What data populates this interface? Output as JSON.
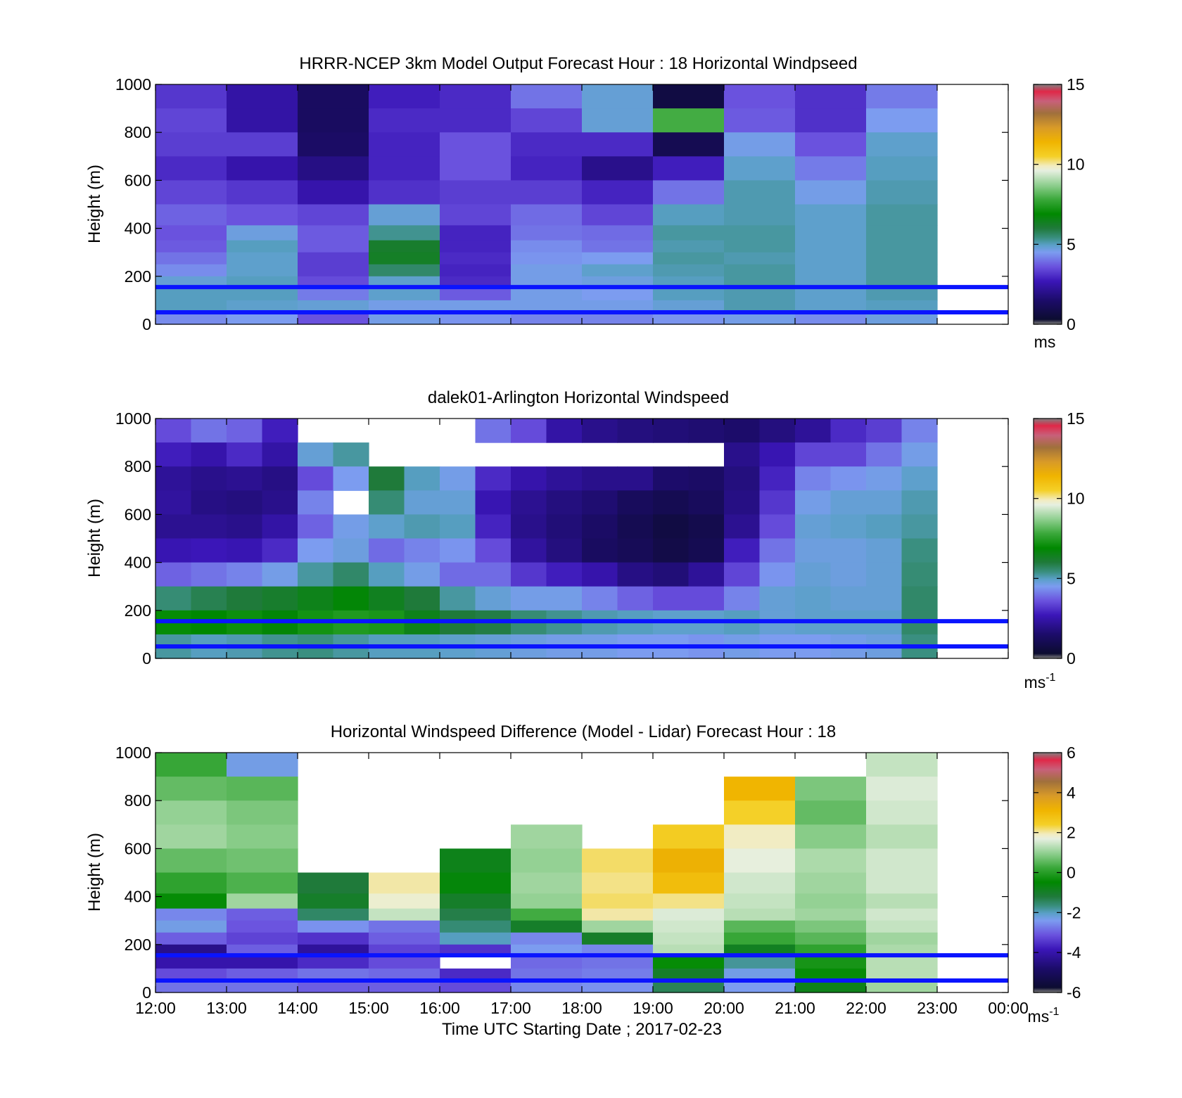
{
  "figure": {
    "xlabel": "Time UTC  Starting Date ; 2017-02-23",
    "time_ticks": [
      "12:00",
      "13:00",
      "14:00",
      "15:00",
      "16:00",
      "17:00",
      "18:00",
      "19:00",
      "20:00",
      "21:00",
      "22:00",
      "23:00",
      "00:00"
    ],
    "reference_lines_m": [
      155,
      50
    ],
    "reference_line_color": "#0a14ff"
  },
  "chart_data": [
    {
      "type": "heatmap",
      "title": "HRRR-NCEP 3km Model Output   Forecast Hour : 18 Horizontal Windpseed",
      "ylabel": "Height (m)",
      "ylim": [
        0,
        1000
      ],
      "yticks": [
        "1000",
        "800",
        "600",
        "400",
        "200",
        "0"
      ],
      "colorbar": {
        "range": [
          0,
          15
        ],
        "ticks": [
          "15",
          "10",
          "5",
          "0"
        ],
        "unit": "ms"
      },
      "x_hours": [
        12,
        13,
        14,
        15,
        16,
        17,
        18,
        19,
        20,
        21,
        22
      ],
      "levels_m": [
        950,
        850,
        750,
        650,
        550,
        450,
        375,
        325,
        275,
        225,
        175,
        125,
        75,
        25
      ],
      "values_ms": [
        [
          3.2,
          3.4,
          3.3,
          3.0,
          3.4,
          3.8,
          3.6,
          3.7,
          4.0,
          4.3,
          4.8,
          5.0,
          5.0,
          4.3
        ],
        [
          2.4,
          2.4,
          3.3,
          2.5,
          3.2,
          3.6,
          4.7,
          5.0,
          4.9,
          4.9,
          5.0,
          5.0,
          4.9,
          4.5
        ],
        [
          1.3,
          1.3,
          1.4,
          1.9,
          2.5,
          3.4,
          3.7,
          3.7,
          3.3,
          3.3,
          3.5,
          4.1,
          4.8,
          3.6
        ],
        [
          2.8,
          3.0,
          2.9,
          2.9,
          3.1,
          4.8,
          5.3,
          6.2,
          6.3,
          5.6,
          4.9,
          4.9,
          4.6,
          4.6
        ],
        [
          3.0,
          3.0,
          3.6,
          3.6,
          3.3,
          3.4,
          2.9,
          2.9,
          3.0,
          2.9,
          3.0,
          3.7,
          4.6,
          4.4
        ],
        [
          4.0,
          3.4,
          3.0,
          2.9,
          3.3,
          3.9,
          4.0,
          4.3,
          4.4,
          4.6,
          4.6,
          4.6,
          4.6,
          4.2
        ],
        [
          4.8,
          4.8,
          3.0,
          2.0,
          2.9,
          3.4,
          3.9,
          4.0,
          4.5,
          4.9,
          4.7,
          4.5,
          4.6,
          4.2
        ],
        [
          0.7,
          7.9,
          1.0,
          2.8,
          4.0,
          5.0,
          5.2,
          5.1,
          5.2,
          5.1,
          5.0,
          5.0,
          4.8,
          4.4
        ],
        [
          3.6,
          3.7,
          4.6,
          4.9,
          5.1,
          5.1,
          5.2,
          5.2,
          5.1,
          5.2,
          5.2,
          5.1,
          5.1,
          4.6
        ],
        [
          3.1,
          3.1,
          3.6,
          4.1,
          4.6,
          4.9,
          4.9,
          4.9,
          4.9,
          4.9,
          4.9,
          4.9,
          4.9,
          4.3
        ],
        [
          4.1,
          4.5,
          4.9,
          5.0,
          5.1,
          5.2,
          5.2,
          5.2,
          5.2,
          5.2,
          5.2,
          5.1,
          5.0,
          4.7
        ]
      ]
    },
    {
      "type": "heatmap",
      "title": "dalek01-Arlington  Horizontal Windspeed",
      "ylabel": "Height (m)",
      "ylim": [
        0,
        1000
      ],
      "yticks": [
        "1000",
        "800",
        "600",
        "400",
        "200",
        "0"
      ],
      "colorbar": {
        "range": [
          0,
          15
        ],
        "ticks": [
          "15",
          "10",
          "5",
          "0"
        ],
        "unit": "ms",
        "unit_sup": "-1"
      },
      "x_hours": [
        12,
        12.5,
        13,
        13.5,
        14,
        14.5,
        15,
        15.5,
        16,
        16.5,
        17,
        17.5,
        18,
        18.5,
        19,
        19.5,
        20,
        20.5,
        21,
        21.5,
        22,
        22.5
      ],
      "levels_m": [
        950,
        850,
        750,
        650,
        550,
        450,
        350,
        250,
        150,
        50
      ],
      "values_ms": [
        [
          3.5,
          2.8,
          2.2,
          2.3,
          2.1,
          2.6,
          3.8,
          5.5,
          7.0,
          5.2
        ],
        [
          4.0,
          2.5,
          2.0,
          1.9,
          2.1,
          2.7,
          4.0,
          5.8,
          6.9,
          5.0
        ],
        [
          3.8,
          3.0,
          2.1,
          1.8,
          2.0,
          2.6,
          4.2,
          6.0,
          7.1,
          5.1
        ],
        [
          2.8,
          2.4,
          1.9,
          2.0,
          2.4,
          3.0,
          4.6,
          6.2,
          6.8,
          5.3
        ],
        [
          null,
          4.8,
          3.5,
          4.2,
          3.8,
          4.5,
          5.2,
          6.5,
          7.2,
          5.4
        ],
        [
          null,
          5.2,
          4.5,
          null,
          4.6,
          4.7,
          5.6,
          6.8,
          7.4,
          5.2
        ],
        [
          null,
          null,
          6.0,
          5.5,
          4.9,
          3.9,
          5.0,
          6.4,
          7.3,
          5.0
        ],
        [
          null,
          null,
          5.0,
          4.8,
          5.1,
          4.2,
          4.6,
          6.0,
          6.5,
          5.0
        ],
        [
          null,
          null,
          4.6,
          4.8,
          5.0,
          4.4,
          3.9,
          5.2,
          6.0,
          4.9
        ],
        [
          4.0,
          null,
          3.0,
          2.6,
          2.9,
          3.5,
          3.9,
          4.8,
          5.9,
          4.8
        ],
        [
          3.5,
          null,
          2.5,
          2.1,
          2.0,
          2.3,
          3.2,
          4.6,
          5.5,
          4.7
        ],
        [
          2.4,
          null,
          2.2,
          1.8,
          1.7,
          1.8,
          2.8,
          4.6,
          5.3,
          4.6
        ],
        [
          2.0,
          null,
          2.0,
          1.6,
          1.4,
          1.3,
          2.5,
          4.2,
          5.1,
          4.6
        ],
        [
          1.8,
          null,
          2.0,
          1.2,
          1.0,
          1.1,
          1.9,
          3.8,
          5.0,
          4.5
        ],
        [
          1.7,
          null,
          1.5,
          1.0,
          0.7,
          0.8,
          1.7,
          3.5,
          4.9,
          4.5
        ],
        [
          1.6,
          null,
          1.4,
          1.2,
          0.9,
          1.0,
          2.2,
          3.5,
          4.9,
          4.4
        ],
        [
          1.5,
          2.0,
          1.8,
          1.9,
          2.1,
          2.8,
          3.4,
          4.2,
          5.0,
          4.6
        ],
        [
          1.8,
          2.6,
          2.9,
          3.2,
          3.5,
          4.0,
          4.4,
          4.8,
          4.8,
          4.5
        ],
        [
          2.2,
          3.4,
          4.2,
          4.6,
          4.8,
          4.7,
          4.8,
          4.9,
          4.9,
          4.5
        ],
        [
          3.0,
          3.4,
          4.4,
          4.8,
          4.9,
          4.7,
          4.7,
          4.8,
          4.9,
          4.6
        ],
        [
          3.3,
          4.0,
          4.6,
          4.8,
          5.0,
          4.8,
          4.8,
          4.8,
          4.9,
          4.7
        ],
        [
          4.2,
          4.6,
          4.9,
          5.1,
          5.2,
          5.4,
          5.5,
          5.6,
          5.6,
          5.4
        ]
      ]
    },
    {
      "type": "heatmap",
      "title": "Horizontal Windspeed Difference (Model - Lidar) Forecast Hour : 18",
      "ylabel": "Height (m)",
      "ylim": [
        0,
        1000
      ],
      "yticks": [
        "1000",
        "800",
        "600",
        "400",
        "200",
        "0"
      ],
      "colorbar": {
        "range": [
          -6,
          6
        ],
        "ticks": [
          "6",
          "4",
          "2",
          "0",
          "-2",
          "-4",
          "-6"
        ],
        "unit": "ms",
        "unit_sup": "-1"
      },
      "x_hours": [
        12,
        13,
        14,
        15,
        16,
        17,
        18,
        19,
        20,
        21,
        22
      ],
      "levels_m": [
        950,
        850,
        750,
        650,
        550,
        450,
        375,
        325,
        275,
        225,
        175,
        125,
        75,
        25
      ],
      "values_ms": [
        [
          0.2,
          0.6,
          1.0,
          1.1,
          0.6,
          0.1,
          -0.4,
          -2.6,
          -2.3,
          -3.0,
          -4.4,
          -4.0,
          -3.2,
          -2.8
        ],
        [
          -2.3,
          0.5,
          0.8,
          0.9,
          0.7,
          0.4,
          1.1,
          -3.0,
          -3.1,
          -3.3,
          -3.0,
          -4.0,
          -3.0,
          -2.8
        ],
        [
          null,
          null,
          null,
          null,
          null,
          -1.2,
          -1.0,
          -1.5,
          -2.5,
          -3.5,
          -4.2,
          -3.6,
          -2.8,
          -3.0
        ],
        [
          null,
          null,
          null,
          null,
          null,
          2.0,
          1.8,
          1.4,
          -2.8,
          -3.0,
          -3.3,
          -3.2,
          -2.9,
          -3.0
        ],
        [
          null,
          null,
          null,
          null,
          -0.8,
          -0.6,
          -1.0,
          -1.3,
          -1.6,
          -2.0,
          -3.5,
          null,
          -3.6,
          -3.2
        ],
        [
          null,
          null,
          null,
          1.1,
          1.0,
          1.1,
          1.0,
          0.3,
          -1.0,
          -2.6,
          -2.4,
          -2.9,
          -2.8,
          -2.6
        ],
        [
          null,
          null,
          null,
          null,
          2.2,
          2.1,
          2.2,
          2.0,
          1.1,
          -1.0,
          -2.6,
          -2.8,
          -2.7,
          -2.5
        ],
        [
          null,
          null,
          null,
          2.5,
          3.2,
          2.9,
          2.1,
          1.6,
          1.5,
          1.4,
          1.3,
          -0.4,
          -1.0,
          -1.4
        ],
        [
          null,
          3.1,
          2.4,
          1.9,
          1.7,
          1.5,
          1.4,
          1.3,
          0.5,
          0.2,
          -0.9,
          -1.8,
          -2.3,
          -2.4
        ],
        [
          null,
          0.8,
          0.6,
          0.9,
          1.2,
          1.1,
          1.0,
          1.1,
          0.8,
          0.5,
          0.1,
          -0.2,
          -0.4,
          -0.8
        ],
        [
          1.4,
          1.6,
          1.5,
          1.3,
          1.5,
          1.5,
          1.3,
          1.5,
          1.4,
          1.1,
          1.2,
          1.3,
          1.3,
          1.1
        ]
      ]
    }
  ]
}
